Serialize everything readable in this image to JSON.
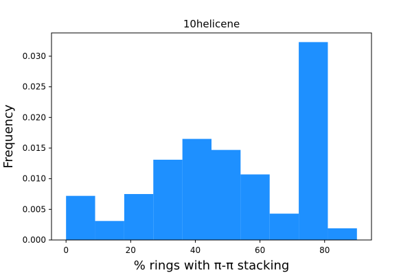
{
  "chart_data": {
    "type": "bar",
    "title": "10helicene",
    "xlabel": "% rings with π-π stacking",
    "ylabel": "Frequency",
    "bin_edges": [
      0,
      9,
      18,
      27,
      36,
      45,
      54,
      63,
      72,
      81,
      90
    ],
    "values": [
      0.0072,
      0.0031,
      0.0075,
      0.0131,
      0.0165,
      0.0147,
      0.0107,
      0.0043,
      0.0323,
      0.0019
    ],
    "xlim": [
      -4.5,
      94.5
    ],
    "ylim": [
      0,
      0.0338
    ],
    "xticks": [
      0,
      20,
      40,
      60,
      80
    ],
    "yticks": [
      0.0,
      0.005,
      0.01,
      0.015,
      0.02,
      0.025,
      0.03
    ],
    "ytick_labels": [
      "0.000",
      "0.005",
      "0.010",
      "0.015",
      "0.020",
      "0.025",
      "0.030"
    ],
    "bar_color": "#1e90ff",
    "grid": false,
    "legend": "none"
  }
}
